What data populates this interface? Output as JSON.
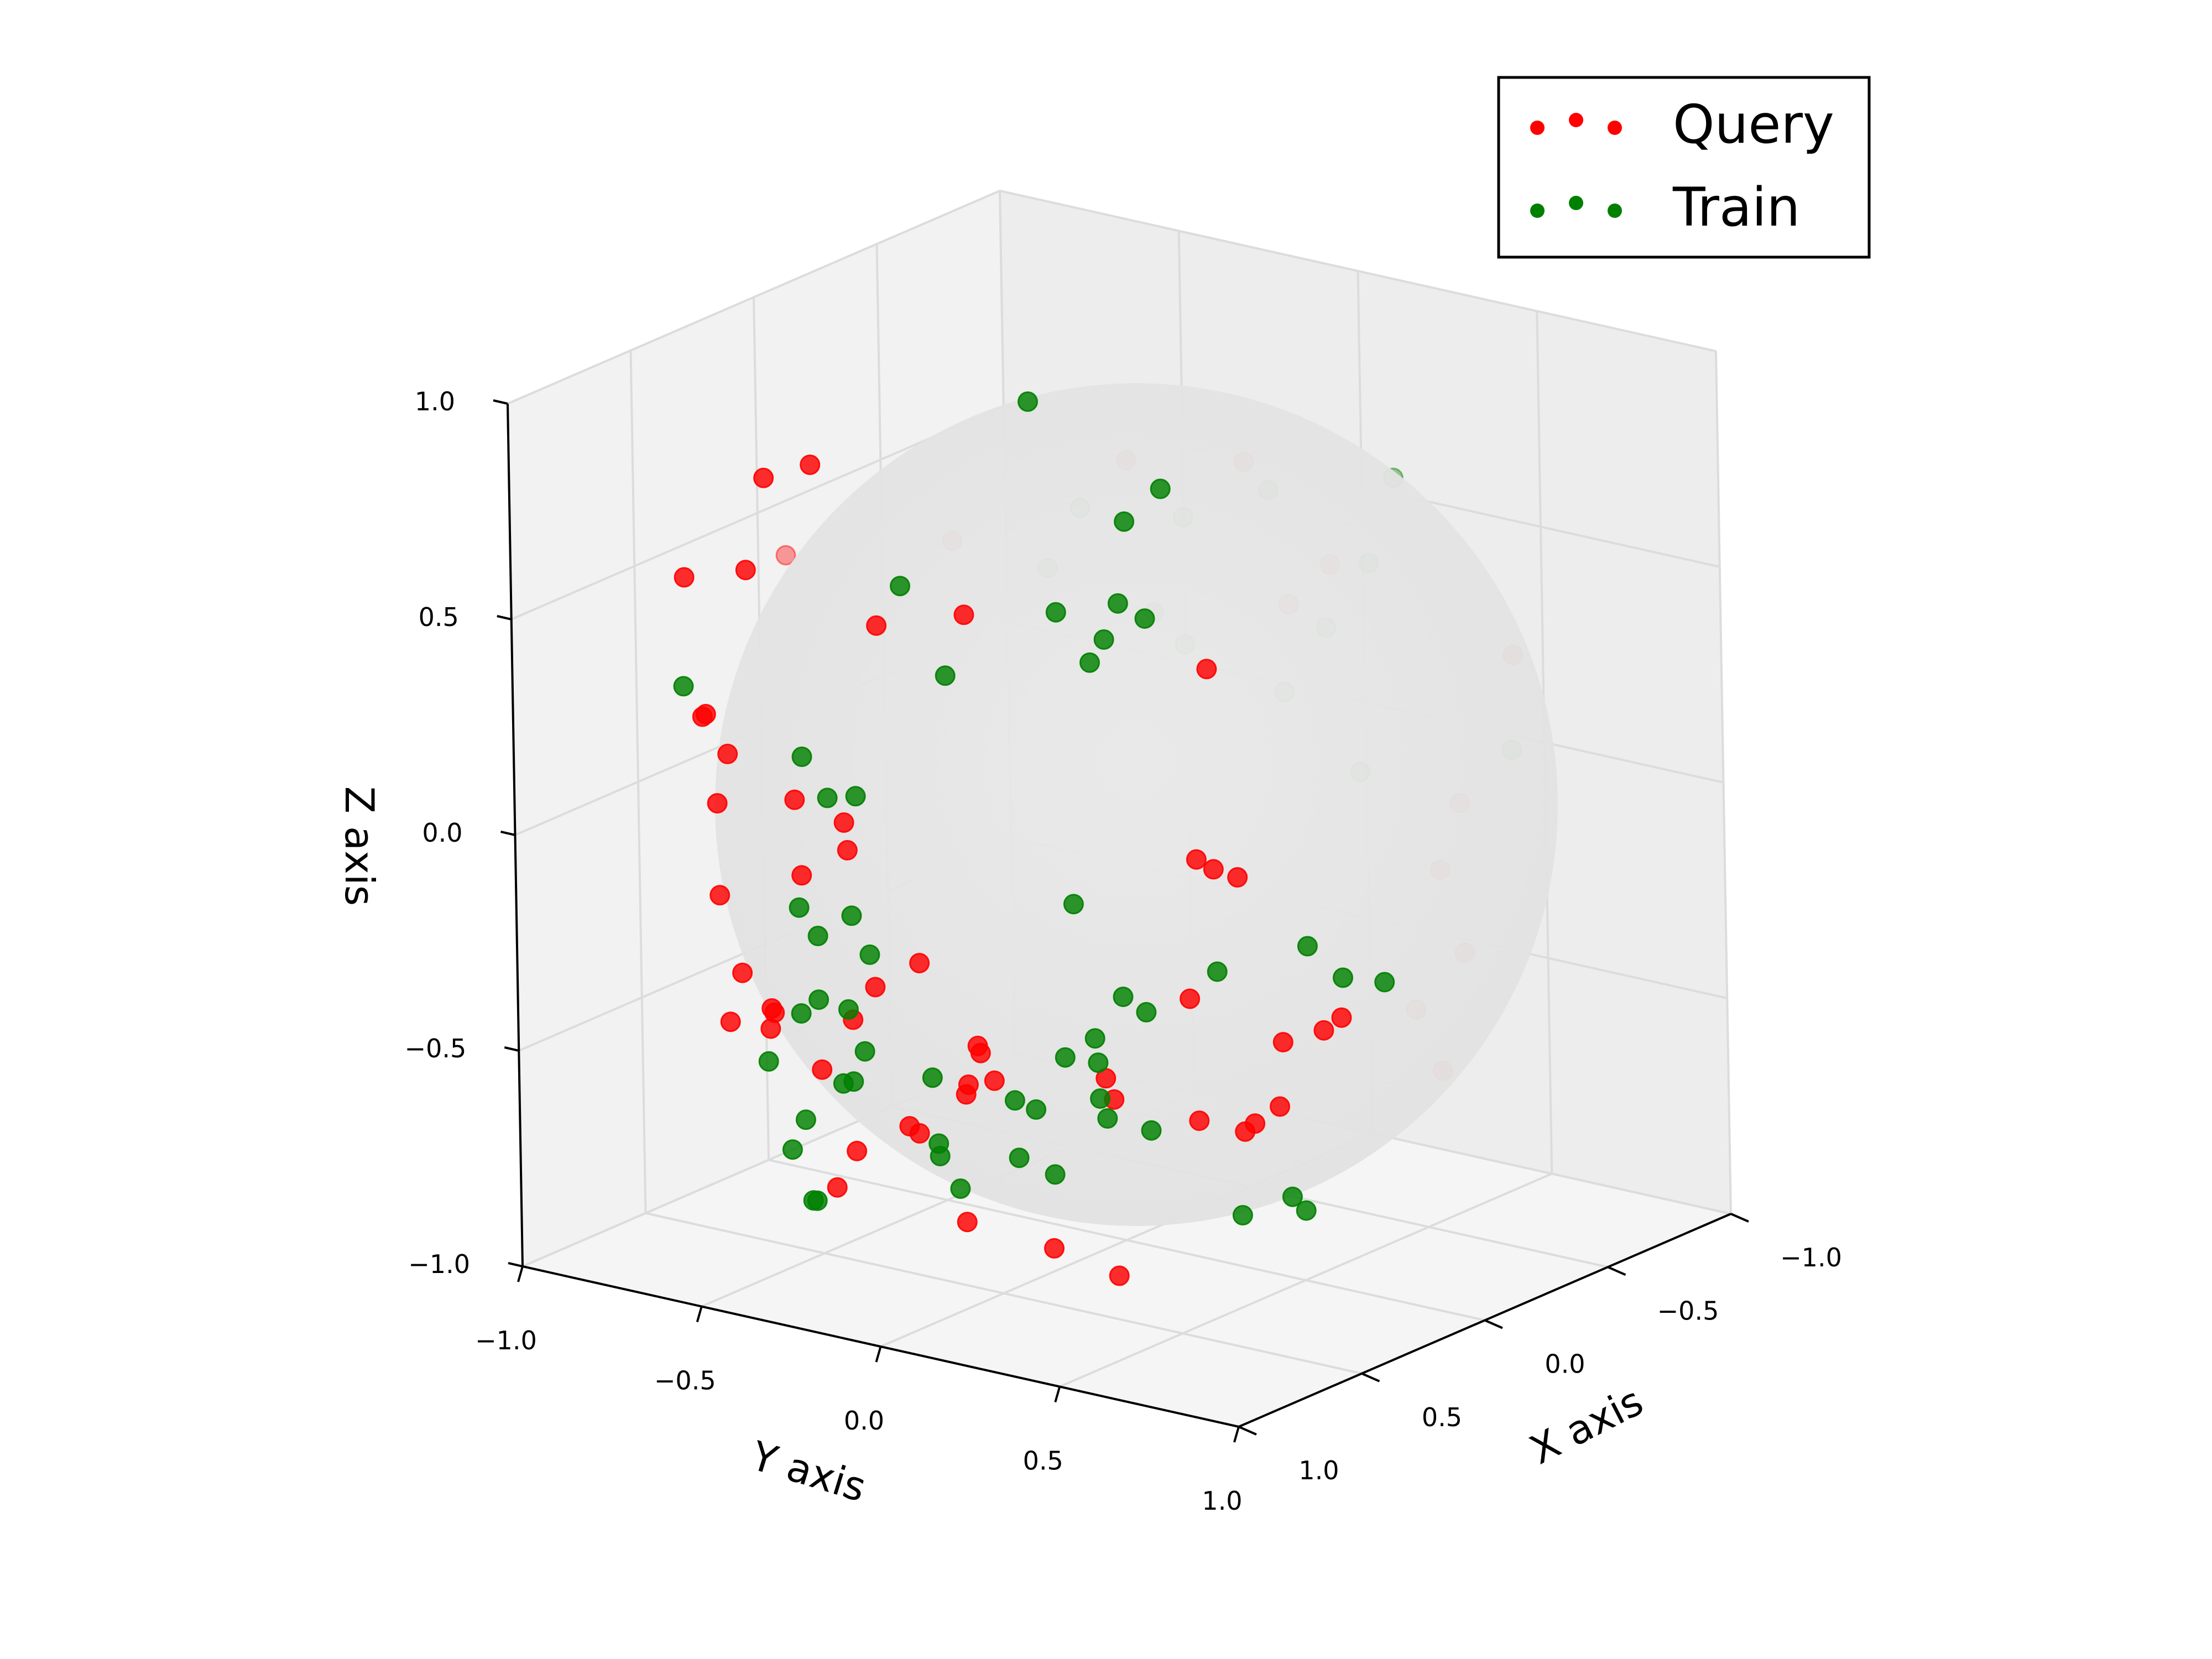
{
  "chart_data": {
    "type": "scatter",
    "projection": "3d",
    "xlabel": "X axis",
    "ylabel": "Y axis",
    "zlabel": "Z axis",
    "xlim": [
      -1.0,
      1.0
    ],
    "ylim": [
      -1.0,
      1.0
    ],
    "zlim": [
      -1.0,
      1.0
    ],
    "xticks": [
      "−1.0",
      "−0.5",
      "0.0",
      "0.5",
      "1.0"
    ],
    "yticks": [
      "−1.0",
      "−0.5",
      "0.0",
      "0.5",
      "1.0"
    ],
    "zticks": [
      "−1.0",
      "−0.5",
      "0.0",
      "0.5",
      "1.0"
    ],
    "grid": true,
    "background_sphere": {
      "radius": 1.0,
      "color": "#e6e6e6"
    },
    "legend_position": "top-right",
    "series": [
      {
        "name": "Query",
        "color": "#ff0000",
        "points": [
          [
            0.72,
            -0.35,
            0.91
          ],
          [
            0.52,
            -0.62,
            0.78
          ],
          [
            0.93,
            0.22,
            0.72
          ],
          [
            0.66,
            -0.75,
            0.56
          ],
          [
            0.53,
            0.62,
            0.57
          ],
          [
            -0.15,
            -0.56,
            0.48
          ],
          [
            0.32,
            -0.45,
            0.42
          ],
          [
            -0.42,
            0.31,
            0.52
          ],
          [
            -0.41,
            0.2,
            0.41
          ],
          [
            0.05,
            0.4,
            0.89
          ],
          [
            0.12,
            0.12,
            0.86
          ],
          [
            -0.62,
            0.68,
            0.33
          ],
          [
            0.21,
            -0.89,
            0.44
          ],
          [
            0.09,
            -0.86,
            0.45
          ],
          [
            0.82,
            -0.34,
            0.16
          ],
          [
            0.34,
            0.45,
            0.05
          ],
          [
            0.28,
            -0.96,
            0.11
          ],
          [
            0.31,
            -0.88,
            0.04
          ],
          [
            0.38,
            -0.9,
            0.14
          ],
          [
            0.47,
            -0.8,
            -0.02
          ],
          [
            0.61,
            -0.7,
            -0.18
          ],
          [
            0.48,
            -0.56,
            -0.14
          ],
          [
            0.68,
            -0.3,
            0.08
          ],
          [
            0.74,
            -0.25,
            0.04
          ],
          [
            0.86,
            0.03,
            -0.14
          ],
          [
            0.93,
            -0.11,
            -0.28
          ],
          [
            0.91,
            -0.06,
            -0.2
          ],
          [
            0.72,
            0.1,
            -0.37
          ],
          [
            0.76,
            0.12,
            -0.34
          ],
          [
            0.43,
            0.56,
            0.07
          ],
          [
            0.42,
            0.62,
            0.06
          ],
          [
            0.52,
            0.55,
            -0.21
          ],
          [
            0.42,
            0.74,
            -0.3
          ],
          [
            0.37,
            0.82,
            -0.27
          ],
          [
            0.24,
            0.78,
            -0.28
          ],
          [
            0.14,
            0.92,
            -0.26
          ],
          [
            0.51,
            0.72,
            -0.47
          ],
          [
            0.68,
            0.81,
            -0.43
          ],
          [
            0.61,
            0.86,
            -0.38
          ],
          [
            0.12,
            0.98,
            0.07
          ],
          [
            0.05,
            0.99,
            0.21
          ],
          [
            0.04,
            0.99,
            -0.14
          ],
          [
            -0.05,
            0.86,
            -0.46
          ],
          [
            0.74,
            -0.55,
            -0.3
          ],
          [
            0.86,
            -0.39,
            -0.37
          ],
          [
            0.84,
            -0.4,
            -0.33
          ],
          [
            0.67,
            -0.38,
            -0.51
          ],
          [
            0.77,
            -0.04,
            -0.57
          ],
          [
            0.81,
            0.12,
            -0.44
          ],
          [
            0.8,
            0.12,
            -0.42
          ],
          [
            0.53,
            0.34,
            -0.48
          ],
          [
            0.49,
            0.29,
            -0.45
          ],
          [
            0.58,
            0.04,
            -0.48
          ],
          [
            0.49,
            0.55,
            -0.5
          ],
          [
            0.66,
            -0.35,
            -0.78
          ],
          [
            0.8,
            0.11,
            -0.74
          ],
          [
            0.71,
            0.29,
            -0.79
          ],
          [
            0.55,
            0.36,
            -0.88
          ],
          [
            0.82,
            -0.53,
            -0.39
          ],
          [
            0.57,
            -0.58,
            -0.44
          ],
          [
            0.78,
            -0.21,
            -0.64
          ],
          [
            0.58,
            -0.2,
            -0.63
          ]
        ]
      },
      {
        "name": "Train",
        "color": "#008000",
        "points": [
          [
            0.24,
            -0.07,
            0.99
          ],
          [
            0.45,
            0.34,
            0.84
          ],
          [
            0.33,
            0.36,
            0.89
          ],
          [
            0.84,
            -0.02,
            0.72
          ],
          [
            0.76,
            0.36,
            0.71
          ],
          [
            0.88,
            0.13,
            0.55
          ],
          [
            0.67,
            -0.75,
            0.31
          ],
          [
            -0.38,
            0.52,
            0.77
          ],
          [
            -0.45,
            0.12,
            0.65
          ],
          [
            -0.35,
            -0.05,
            0.58
          ],
          [
            -0.75,
            0.19,
            0.42
          ],
          [
            -0.61,
            -0.52,
            0.45
          ],
          [
            -0.53,
            0.22,
            0.33
          ],
          [
            0.12,
            0.19,
            0.52
          ],
          [
            -0.62,
            -0.62,
            0.29
          ],
          [
            -0.27,
            0.49,
            0.11
          ],
          [
            -0.55,
            -0.19,
            0.21
          ],
          [
            -0.66,
            0.01,
            0.11
          ],
          [
            0.38,
            0.27,
            0.62
          ],
          [
            0.33,
            0.31,
            0.58
          ],
          [
            0.41,
            0.25,
            0.54
          ],
          [
            0.44,
            0.23,
            0.49
          ],
          [
            -0.35,
            0.86,
            0.21
          ],
          [
            0.73,
            -0.38,
            0.23
          ],
          [
            0.63,
            -0.38,
            0.11
          ],
          [
            0.66,
            -0.28,
            0.14
          ],
          [
            0.9,
            -0.13,
            -0.05
          ],
          [
            0.93,
            -0.06,
            -0.12
          ],
          [
            0.55,
            -0.52,
            -0.19
          ],
          [
            0.62,
            -0.42,
            -0.22
          ],
          [
            0.68,
            0.34,
            0.01
          ],
          [
            0.58,
            0.67,
            -0.11
          ],
          [
            0.76,
            0.53,
            -0.15
          ],
          [
            0.79,
            0.47,
            -0.25
          ],
          [
            0.75,
            0.45,
            -0.32
          ],
          [
            0.43,
            0.82,
            -0.06
          ],
          [
            0.39,
            0.89,
            -0.13
          ],
          [
            0.28,
            0.93,
            -0.16
          ],
          [
            0.88,
            -0.24,
            -0.27
          ],
          [
            0.87,
            -0.12,
            -0.37
          ],
          [
            0.71,
            0.33,
            -0.34
          ],
          [
            0.73,
            0.44,
            -0.41
          ],
          [
            0.67,
            0.54,
            -0.48
          ],
          [
            0.35,
            0.57,
            -0.75
          ],
          [
            0.22,
            0.62,
            -0.73
          ],
          [
            0.64,
            -0.55,
            -0.53
          ],
          [
            0.78,
            -0.39,
            -0.67
          ],
          [
            0.8,
            -0.32,
            -0.77
          ],
          [
            0.77,
            -0.33,
            -0.78
          ],
          [
            0.71,
            0.03,
            -0.7
          ],
          [
            0.66,
            -0.31,
            -0.36
          ],
          [
            0.75,
            -0.38,
            -0.36
          ],
          [
            0.86,
            -0.16,
            -0.45
          ],
          [
            0.78,
            0.02,
            -0.58
          ],
          [
            0.73,
            0.21,
            -0.59
          ],
          [
            0.73,
            0.31,
            -0.61
          ],
          [
            0.7,
            0.18,
            -0.47
          ],
          [
            0.63,
            0.39,
            -0.49
          ],
          [
            0.86,
            0.35,
            -0.42
          ],
          [
            0.7,
            -0.05,
            -0.46
          ],
          [
            0.71,
            -0.4,
            -0.62
          ],
          [
            0.18,
            0.63,
            -0.77
          ],
          [
            0.61,
            0.49,
            -0.23
          ],
          [
            0.43,
            -0.22,
            -0.74
          ],
          [
            0.7,
            -0.3,
            -0.52
          ]
        ]
      }
    ]
  }
}
